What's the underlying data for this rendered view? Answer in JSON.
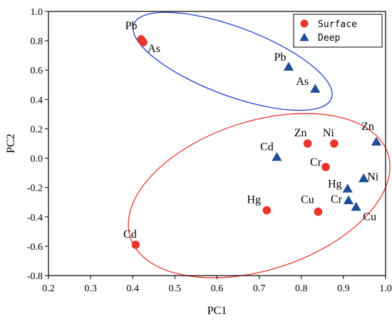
{
  "chart_data": {
    "type": "scatter",
    "xlabel": "PC1",
    "ylabel": "PC2",
    "xlim": [
      0.2,
      1.0
    ],
    "ylim": [
      -0.8,
      1.0
    ],
    "xticks": [
      "0.2",
      "0.3",
      "0.4",
      "0.5",
      "0.6",
      "0.7",
      "0.8",
      "0.9",
      "1.0"
    ],
    "yticks": [
      "-0.8",
      "-0.6",
      "-0.4",
      "-0.2",
      "0.0",
      "0.2",
      "0.4",
      "0.6",
      "0.8",
      "1.0"
    ],
    "grid": false,
    "legend": "top-right",
    "colors": {
      "surface": "#e8352e",
      "deep": "#1f4e96",
      "surface_ellipse": "#e8352e",
      "deep_ellipse": "#1f3fd0"
    },
    "series": [
      {
        "name": "Surface",
        "marker": "circle",
        "points": [
          {
            "label": "Pb",
            "x": 0.42,
            "y": 0.81
          },
          {
            "label": "As",
            "x": 0.425,
            "y": 0.79
          },
          {
            "label": "Zn",
            "x": 0.815,
            "y": 0.1
          },
          {
            "label": "Ni",
            "x": 0.878,
            "y": 0.1
          },
          {
            "label": "Cr",
            "x": 0.858,
            "y": -0.06
          },
          {
            "label": "Hg",
            "x": 0.718,
            "y": -0.355
          },
          {
            "label": "Cu",
            "x": 0.84,
            "y": -0.365
          },
          {
            "label": "Cd",
            "x": 0.407,
            "y": -0.59
          }
        ]
      },
      {
        "name": "Deep",
        "marker": "triangle",
        "points": [
          {
            "label": "Pb",
            "x": 0.77,
            "y": 0.62
          },
          {
            "label": "As",
            "x": 0.833,
            "y": 0.47
          },
          {
            "label": "Cd",
            "x": 0.742,
            "y": 0.005
          },
          {
            "label": "Zn",
            "x": 0.978,
            "y": 0.11
          },
          {
            "label": "Ni",
            "x": 0.948,
            "y": -0.14
          },
          {
            "label": "Hg",
            "x": 0.91,
            "y": -0.21
          },
          {
            "label": "Cr",
            "x": 0.912,
            "y": -0.29
          },
          {
            "label": "Cu",
            "x": 0.93,
            "y": -0.335
          }
        ]
      }
    ]
  }
}
